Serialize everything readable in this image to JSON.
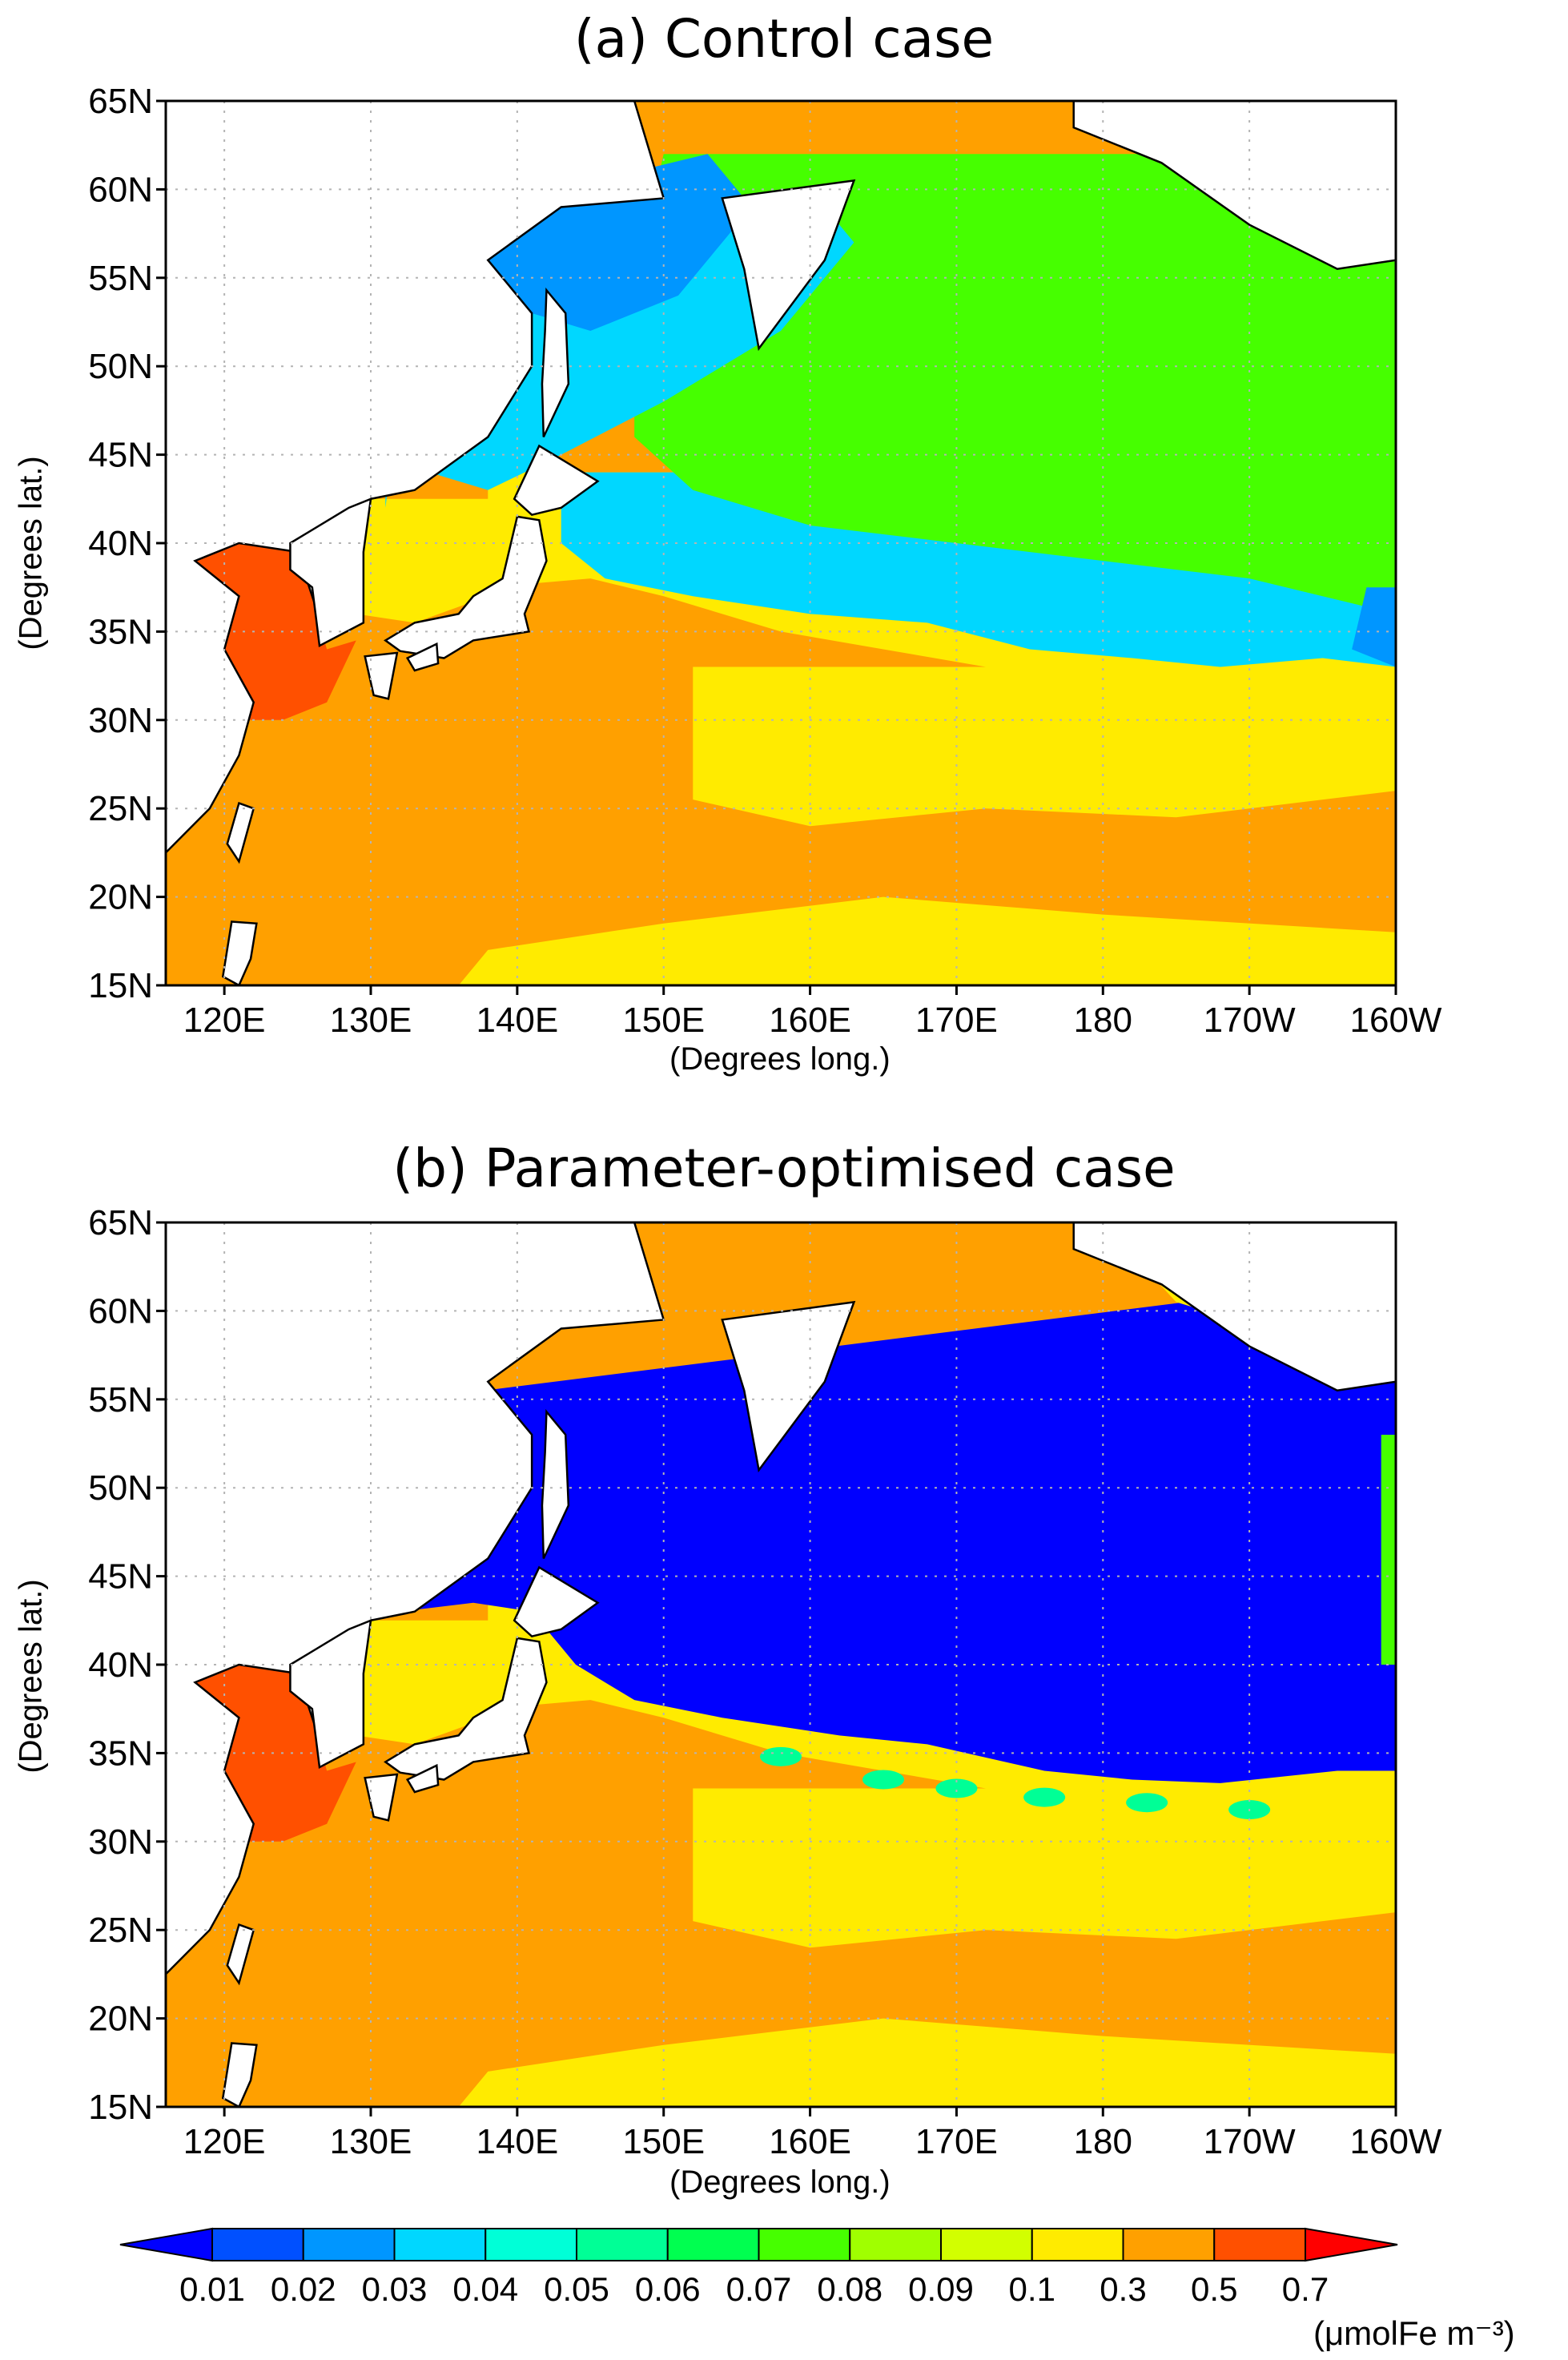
{
  "panels": [
    {
      "title": "(a) Control case",
      "ylabel": "(Degrees lat.)",
      "xlabel": "(Degrees long.)",
      "lat_ticks": [
        "65N",
        "60N",
        "55N",
        "50N",
        "45N",
        "40N",
        "35N",
        "30N",
        "25N",
        "20N",
        "15N"
      ],
      "lon_ticks": [
        "120E",
        "130E",
        "140E",
        "150E",
        "160E",
        "170E",
        "180",
        "170W",
        "160W"
      ],
      "scenario": "control"
    },
    {
      "title": "(b) Parameter-optimised case",
      "ylabel": "(Degrees lat.)",
      "xlabel": "(Degrees long.)",
      "lat_ticks": [
        "65N",
        "60N",
        "55N",
        "50N",
        "45N",
        "40N",
        "35N",
        "30N",
        "25N",
        "20N",
        "15N"
      ],
      "lon_ticks": [
        "120E",
        "130E",
        "140E",
        "150E",
        "160E",
        "170E",
        "180",
        "170W",
        "160W"
      ],
      "scenario": "optimised"
    }
  ],
  "colorbar": {
    "labels": [
      "0.01",
      "0.02",
      "0.03",
      "0.04",
      "0.05",
      "0.06",
      "0.07",
      "0.08",
      "0.09",
      "0.1",
      "0.3",
      "0.5",
      "0.7"
    ],
    "colors": [
      "#0000ff",
      "#0050ff",
      "#0096ff",
      "#00d7ff",
      "#00ffd7",
      "#00ff96",
      "#00ff50",
      "#46ff00",
      "#a0ff00",
      "#d2ff00",
      "#ffeb00",
      "#ffa000",
      "#ff5000",
      "#ff0000"
    ],
    "unit_label": "(μmolFe m⁻³)"
  },
  "colors": {
    "land": "#ffffff",
    "land_outline": "#000000",
    "grid": "#b4b4b4",
    "korea_yellow_sea": "#ff5000",
    "subtropical": "#ffa000",
    "transition": "#ffeb00",
    "control_subarctic": "#46ff00",
    "control_okhotsk": "#0096ff",
    "control_cyan": "#00d7ff",
    "optimised_subarctic": "#0000ff"
  }
}
